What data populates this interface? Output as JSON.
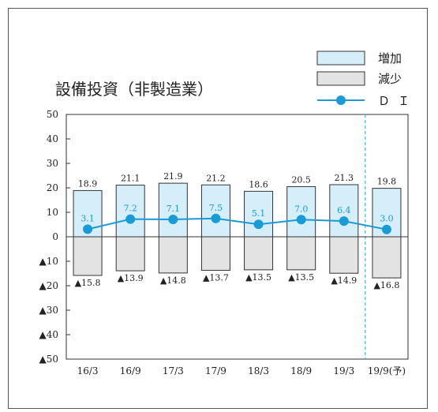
{
  "chart_data": {
    "type": "bar",
    "title": "設備投資（非製造業）",
    "categories": [
      "16/3",
      "16/9",
      "17/3",
      "17/9",
      "18/3",
      "18/9",
      "19/3",
      "19/9(予)"
    ],
    "series": [
      {
        "name": "増加",
        "values": [
          18.9,
          21.1,
          21.9,
          21.2,
          18.6,
          20.5,
          21.3,
          19.8
        ],
        "labels": [
          "18.9",
          "21.1",
          "21.9",
          "21.2",
          "18.6",
          "20.5",
          "21.3",
          "19.8"
        ]
      },
      {
        "name": "減少",
        "values": [
          -15.8,
          -13.9,
          -14.8,
          -13.7,
          -13.5,
          -13.5,
          -14.9,
          -16.8
        ],
        "labels": [
          "▲15.8",
          "▲13.9",
          "▲14.8",
          "▲13.7",
          "▲13.5",
          "▲13.5",
          "▲14.9",
          "▲16.8"
        ]
      },
      {
        "name": "ＤＩ",
        "type": "line",
        "values": [
          3.1,
          7.2,
          7.1,
          7.5,
          5.1,
          7.0,
          6.4,
          3.0
        ],
        "labels": [
          "3.1",
          "7.2",
          "7.1",
          "7.5",
          "5.1",
          "7.0",
          "6.4",
          "3.0"
        ]
      }
    ],
    "ylim": [
      -50,
      50
    ],
    "yticks": [
      50,
      40,
      30,
      20,
      10,
      0,
      -10,
      -20,
      -30,
      -40,
      -50
    ],
    "ytick_labels": [
      "50",
      "40",
      "30",
      "20",
      "10",
      "0",
      "▲10",
      "▲20",
      "▲30",
      "▲40",
      "▲50"
    ],
    "forecast_divider": "dashed line before 19/9(予)",
    "grid": false,
    "legend_position": "top-right",
    "colors": {
      "increase_fill": "#d6eefa",
      "decrease_fill": "#e3e3e3",
      "di_line": "#1a9ad6",
      "di_label": "#1a9ad6",
      "divider": "#3fb6dc",
      "axis": "#333333"
    }
  }
}
